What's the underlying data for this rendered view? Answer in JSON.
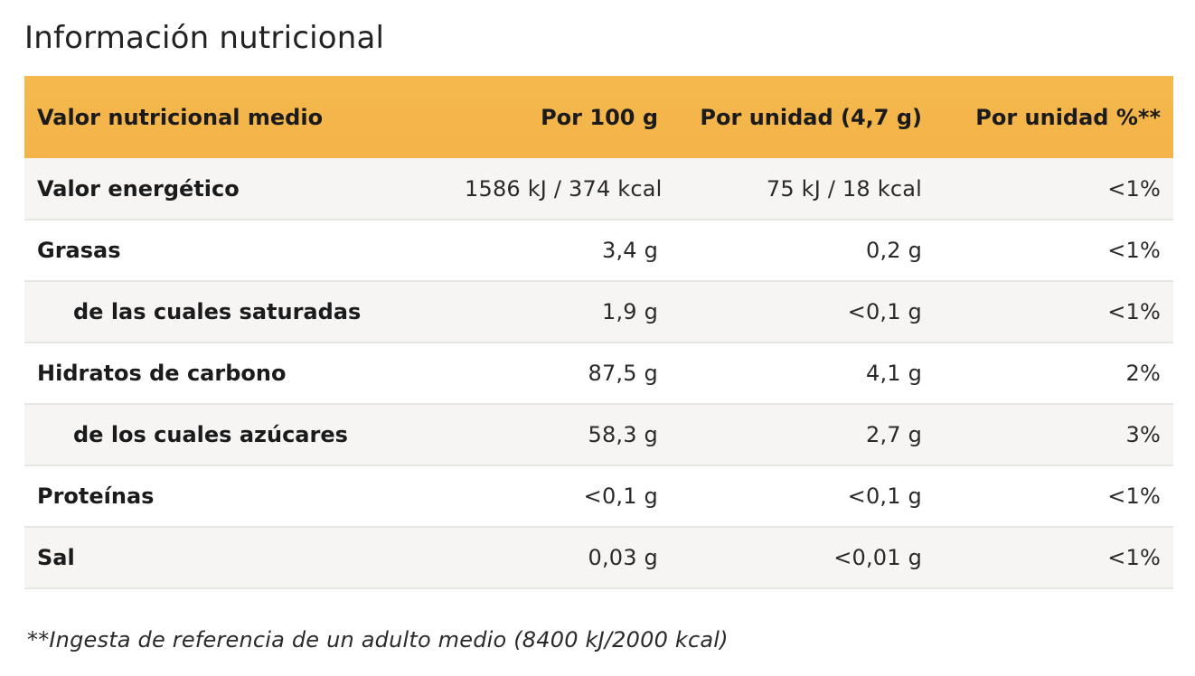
{
  "title": "Información nutricional",
  "table": {
    "headers": [
      "Valor nutricional medio",
      "Por 100 g",
      "Por unidad (4,7 g)",
      "Por unidad %**"
    ],
    "rows": [
      {
        "label": "Valor energético",
        "sub": false,
        "per100": "1586 kJ / 374 kcal",
        "perUnit": "75 kJ / 18 kcal",
        "pct": "<1%"
      },
      {
        "label": "Grasas",
        "sub": false,
        "per100": "3,4 g",
        "perUnit": "0,2 g",
        "pct": "<1%"
      },
      {
        "label": "de las cuales saturadas",
        "sub": true,
        "per100": "1,9 g",
        "perUnit": "<0,1 g",
        "pct": "<1%"
      },
      {
        "label": "Hidratos de carbono",
        "sub": false,
        "per100": "87,5 g",
        "perUnit": "4,1 g",
        "pct": "2%"
      },
      {
        "label": "de los cuales azúcares",
        "sub": true,
        "per100": "58,3 g",
        "perUnit": "2,7 g",
        "pct": "3%"
      },
      {
        "label": "Proteínas",
        "sub": false,
        "per100": "<0,1 g",
        "perUnit": "<0,1 g",
        "pct": "<1%"
      },
      {
        "label": "Sal",
        "sub": false,
        "per100": "0,03 g",
        "perUnit": "<0,01 g",
        "pct": "<1%"
      }
    ]
  },
  "footnote": "**Ingesta de referencia de un adulto medio (8400 kJ/2000 kcal)",
  "colors": {
    "header_bg": "#f4b54a",
    "row_alt_bg": "#f6f5f4",
    "text": "#1b1b1b"
  }
}
